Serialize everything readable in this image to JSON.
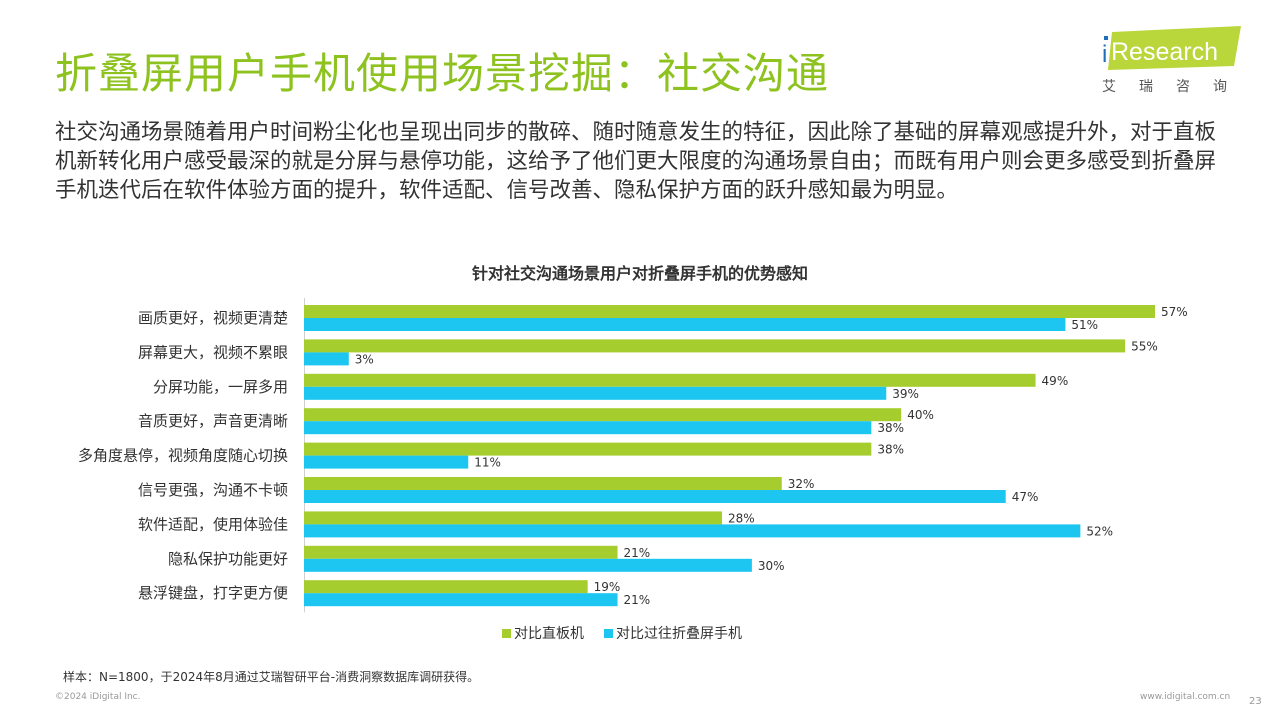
{
  "header": {
    "title": "折叠屏用户手机使用场景挖掘：社交沟通",
    "logo_main": "Research",
    "logo_i": "i",
    "logo_sub": "艾瑞咨询"
  },
  "intro": "社交沟通场景随着用户时间粉尘化也呈现出同步的散碎、随时随意发生的特征，因此除了基础的屏幕观感提升外，对于直板机新转化用户感受最深的就是分屏与悬停功能，这给予了他们更大限度的沟通场景自由；而既有用户则会更多感受到折叠屏手机迭代后在软件体验方面的提升，软件适配、信号改善、隐私保护方面的跃升感知最为明显。",
  "chart_data": {
    "type": "bar",
    "orientation": "horizontal",
    "title": "针对社交沟通场景用户对折叠屏手机的优势感知",
    "categories": [
      "画质更好，视频更清楚",
      "屏幕更大，视频不累眼",
      "分屏功能，一屏多用",
      "音质更好，声音更清晰",
      "多角度悬停，视频角度随心切换",
      "信号更强，沟通不卡顿",
      "软件适配，使用体验佳",
      "隐私保护功能更好",
      "悬浮键盘，打字更方便"
    ],
    "series": [
      {
        "name": "对比直板机",
        "values": [
          57,
          55,
          49,
          40,
          38,
          32,
          28,
          21,
          19
        ],
        "color": "#a6cd2e"
      },
      {
        "name": "对比过往折叠屏手机",
        "values": [
          51,
          3,
          39,
          38,
          11,
          47,
          52,
          30,
          21
        ],
        "color": "#1cc6f0"
      }
    ],
    "unit": "%",
    "xlim": [
      0,
      60
    ],
    "grid": false,
    "legend_position": "bottom"
  },
  "colors": {
    "accent_green": "#8dc21f",
    "bar_green": "#a6cd2e",
    "bar_blue": "#1cc6f0"
  },
  "footer": {
    "note": "样本：N=1800，于2024年8月通过艾瑞智研平台-消费洞察数据库调研获得。",
    "copyright": "©2024 iDigital Inc.",
    "website": "www.idigital.com.cn",
    "page": "23"
  }
}
